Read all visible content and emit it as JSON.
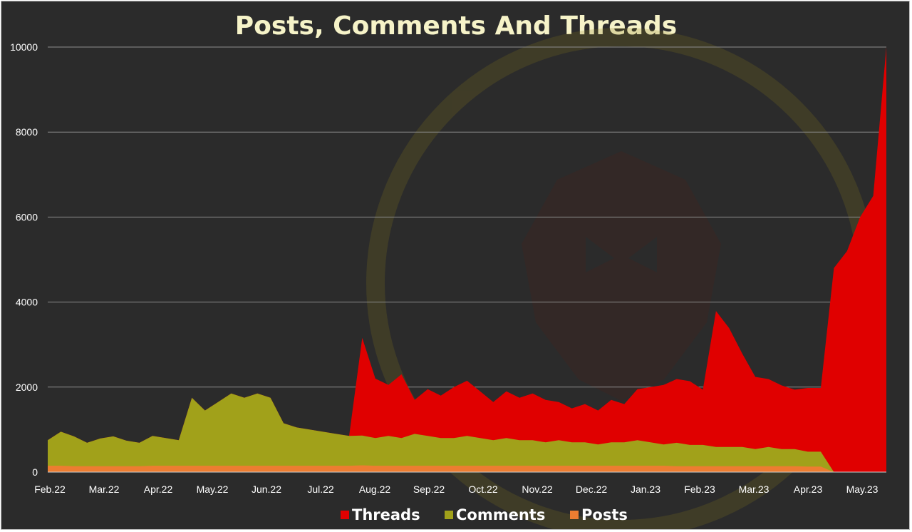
{
  "chart_data": {
    "type": "area",
    "title": "Posts, Comments And Threads",
    "xlabel": "",
    "ylabel": "",
    "ylim": [
      0,
      10000
    ],
    "yticks": [
      0,
      2000,
      4000,
      6000,
      8000,
      10000
    ],
    "grid": true,
    "legend_position": "bottom",
    "x_tick_labels": [
      "Feb.22",
      "Mar.22",
      "Apr.22",
      "May.22",
      "Jun.22",
      "Jul.22",
      "Aug.22",
      "Sep.22",
      "Oct.22",
      "Nov.22",
      "Dec.22",
      "Jan.23",
      "Feb.23",
      "Mar.23",
      "Apr.23",
      "May.23"
    ],
    "x": [
      "Feb.22",
      "Feb.22",
      "Feb.22",
      "Feb.22",
      "Mar.22",
      "Mar.22",
      "Mar.22",
      "Mar.22",
      "Apr.22",
      "Apr.22",
      "Apr.22",
      "Apr.22",
      "May.22",
      "May.22",
      "May.22",
      "May.22",
      "Jun.22",
      "Jun.22",
      "Jun.22",
      "Jun.22",
      "Jul.22",
      "Jul.22",
      "Jul.22",
      "Jul.22",
      "Aug.22",
      "Aug.22",
      "Aug.22",
      "Aug.22",
      "Sep.22",
      "Sep.22",
      "Sep.22",
      "Sep.22",
      "Oct.22",
      "Oct.22",
      "Oct.22",
      "Oct.22",
      "Nov.22",
      "Nov.22",
      "Nov.22",
      "Nov.22",
      "Dec.22",
      "Dec.22",
      "Dec.22",
      "Dec.22",
      "Jan.23",
      "Jan.23",
      "Jan.23",
      "Jan.23",
      "Feb.23",
      "Feb.23",
      "Feb.23",
      "Feb.23",
      "Mar.23",
      "Mar.23",
      "Mar.23",
      "Mar.23",
      "Apr.23",
      "Apr.23",
      "Apr.23",
      "Apr.23",
      "May.23",
      "May.23",
      "May.23",
      "May.23",
      "May.23"
    ],
    "series": [
      {
        "name": "Threads",
        "color": "#e00000",
        "values": [
          0,
          0,
          0,
          0,
          0,
          0,
          0,
          0,
          0,
          0,
          0,
          0,
          0,
          0,
          0,
          0,
          0,
          0,
          0,
          0,
          0,
          0,
          0,
          0,
          2300,
          1400,
          1200,
          1500,
          800,
          1100,
          1000,
          1200,
          1300,
          1100,
          900,
          1100,
          1000,
          1100,
          1000,
          900,
          800,
          900,
          800,
          1000,
          900,
          1200,
          1300,
          1400,
          1500,
          1500,
          1300,
          3200,
          2800,
          2200,
          1700,
          1600,
          1500,
          1400,
          1500,
          1500,
          4800,
          5200,
          6000,
          6500,
          10000
        ]
      },
      {
        "name": "Comments",
        "color": "#a1a11a",
        "values": [
          600,
          800,
          700,
          550,
          650,
          700,
          600,
          550,
          700,
          650,
          600,
          1600,
          1300,
          1500,
          1700,
          1600,
          1700,
          1600,
          1000,
          900,
          850,
          800,
          750,
          700,
          700,
          650,
          700,
          650,
          750,
          700,
          650,
          650,
          700,
          650,
          600,
          650,
          600,
          600,
          550,
          600,
          550,
          550,
          500,
          550,
          550,
          600,
          550,
          500,
          550,
          500,
          500,
          450,
          450,
          450,
          400,
          450,
          400,
          400,
          350,
          350,
          0,
          0,
          0,
          0,
          0
        ]
      },
      {
        "name": "Posts",
        "color": "#ed7d31",
        "values": [
          150,
          150,
          140,
          140,
          140,
          140,
          140,
          140,
          150,
          150,
          150,
          150,
          150,
          150,
          150,
          150,
          150,
          150,
          150,
          150,
          150,
          150,
          150,
          150,
          160,
          150,
          150,
          150,
          150,
          150,
          150,
          150,
          150,
          150,
          150,
          150,
          150,
          150,
          150,
          150,
          150,
          150,
          150,
          150,
          150,
          150,
          150,
          150,
          140,
          140,
          140,
          140,
          140,
          140,
          140,
          140,
          140,
          140,
          130,
          130,
          0,
          0,
          0,
          0,
          0
        ]
      }
    ]
  }
}
